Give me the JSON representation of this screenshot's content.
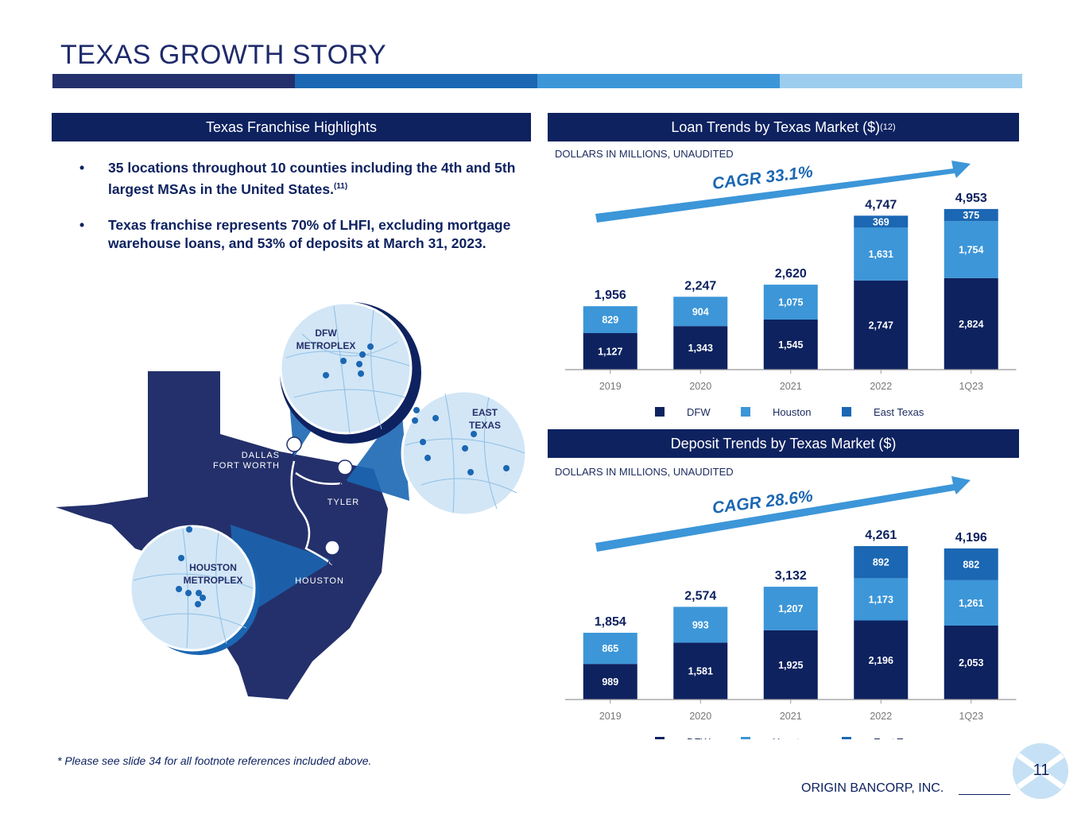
{
  "title": "TEXAS GROWTH STORY",
  "colors": {
    "navy": "#0e2260",
    "mid_blue": "#1b67b3",
    "light_blue": "#3c96d8",
    "pale_blue": "#9ccdee",
    "dark_bar": "#24306b"
  },
  "highlights": {
    "header": "Texas Franchise Highlights",
    "bullets": [
      {
        "text": "35 locations throughout 10 counties including the 4th and 5th largest MSAs in the United States.",
        "ref": "(11)"
      },
      {
        "text": "Texas franchise represents 70% of LHFI, excluding mortgage warehouse loans, and 53% of deposits at March 31, 2023.",
        "ref": ""
      }
    ]
  },
  "map": {
    "labels": {
      "dfw": [
        "DFW",
        "METROPLEX"
      ],
      "east_texas": [
        "EAST",
        "TEXAS"
      ],
      "houston_metro": [
        "HOUSTON",
        "METROPLEX"
      ],
      "dallas": [
        "DALLAS",
        "FORT WORTH"
      ],
      "tyler": "TYLER",
      "houston": "HOUSTON"
    },
    "icons": [
      "location-pin-icon"
    ]
  },
  "loans": {
    "header": "Loan Trends by Texas Market ($)",
    "header_ref": "(12)",
    "units": "DOLLARS IN MILLIONS, UNAUDITED",
    "cagr": "CAGR 33.1%"
  },
  "deposits": {
    "header": "Deposit Trends by Texas Market ($)",
    "units": "DOLLARS IN MILLIONS, UNAUDITED",
    "cagr": "CAGR 28.6%"
  },
  "chart_data": [
    {
      "type": "bar",
      "stacked": true,
      "title": "Loan Trends by Texas Market ($)",
      "categories": [
        "2019",
        "2020",
        "2021",
        "2022",
        "1Q23"
      ],
      "series": [
        {
          "name": "DFW",
          "values": [
            1127,
            1343,
            1545,
            2747,
            2824
          ],
          "labels": [
            "1,127",
            "1,343",
            "1,545",
            "2,747",
            "2,824"
          ]
        },
        {
          "name": "Houston",
          "values": [
            829,
            904,
            1075,
            1631,
            1754
          ],
          "labels": [
            "829",
            "904",
            "1,075",
            "1,631",
            "1,754"
          ]
        },
        {
          "name": "East Texas",
          "values": [
            0,
            0,
            0,
            369,
            375
          ],
          "labels": [
            "",
            "",
            "",
            "369",
            "375"
          ]
        }
      ],
      "totals": [
        "1,956",
        "2,247",
        "2,620",
        "4,747",
        "4,953"
      ],
      "legend": [
        "DFW",
        "Houston",
        "East Texas"
      ],
      "legend_position": "bottom",
      "grid": false
    },
    {
      "type": "bar",
      "stacked": true,
      "title": "Deposit Trends by Texas Market ($)",
      "categories": [
        "2019",
        "2020",
        "2021",
        "2022",
        "1Q23"
      ],
      "series": [
        {
          "name": "DFW",
          "values": [
            989,
            1581,
            1925,
            2196,
            2053
          ],
          "labels": [
            "989",
            "1,581",
            "1,925",
            "2,196",
            "2,053"
          ]
        },
        {
          "name": "Houston",
          "values": [
            865,
            993,
            1207,
            1173,
            1261
          ],
          "labels": [
            "865",
            "993",
            "1,207",
            "1,173",
            "1,261"
          ]
        },
        {
          "name": "East Texas",
          "values": [
            0,
            0,
            0,
            892,
            882
          ],
          "labels": [
            "",
            "",
            "",
            "892",
            "882"
          ]
        }
      ],
      "totals": [
        "1,854",
        "2,574",
        "3,132",
        "4,261",
        "4,196"
      ],
      "legend": [
        "DFW",
        "Houston",
        "East Texas"
      ],
      "legend_position": "bottom",
      "grid": false
    }
  ],
  "footnote": "* Please see slide 34 for all footnote references included above.",
  "footer": {
    "company": "ORIGIN BANCORP, INC.",
    "page": "11"
  }
}
